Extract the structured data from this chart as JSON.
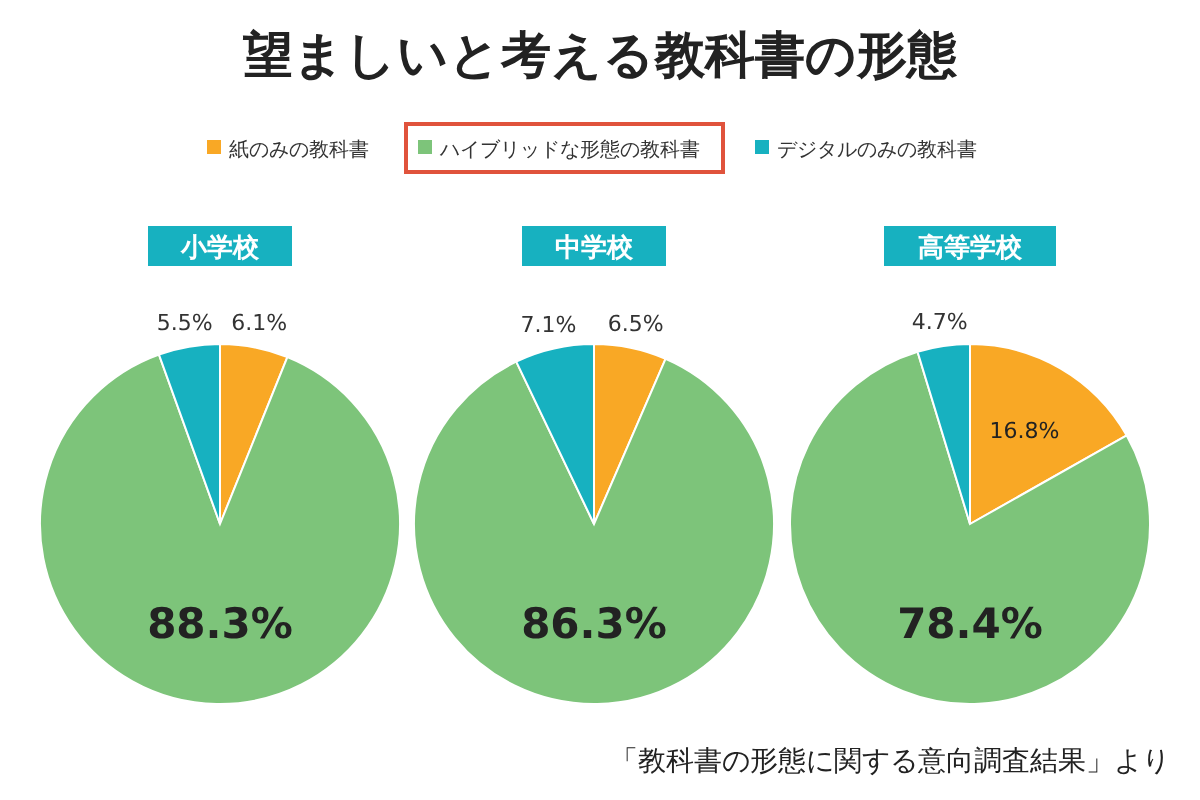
{
  "chart_data": [
    {
      "type": "pie",
      "title": "望ましいと考える教科書の形態",
      "subtitle": "小学校",
      "legend": "top",
      "categories": [
        "紙のみの教科書",
        "ハイブリッドな形態の教科書",
        "デジタルのみの教科書"
      ],
      "values": [
        6.1,
        88.3,
        5.5
      ],
      "value_labels": [
        "6.1%",
        "88.3%",
        "5.5%"
      ],
      "colors": [
        "#f9a825",
        "#7dc47a",
        "#17b1c0"
      ]
    },
    {
      "type": "pie",
      "subtitle": "中学校",
      "categories": [
        null,
        null,
        null
      ],
      "values": [
        6.5,
        86.3,
        7.1
      ],
      "value_labels": [
        "6.5%",
        "86.3%",
        "7.1%"
      ],
      "colors": [
        "#f9a825",
        "#7dc47a",
        "#17b1c0"
      ]
    },
    {
      "type": "pie",
      "subtitle": "高等学校",
      "categories": [
        null,
        null,
        null
      ],
      "values": [
        16.8,
        78.4,
        4.7
      ],
      "value_labels": [
        "16.8%",
        "78.4%",
        "4.7%"
      ],
      "colors": [
        "#f9a825",
        "#7dc47a",
        "#17b1c0"
      ],
      "annotations": [
        "「教科書の形態に関する意向調査結果」より"
      ]
    }
  ]
}
